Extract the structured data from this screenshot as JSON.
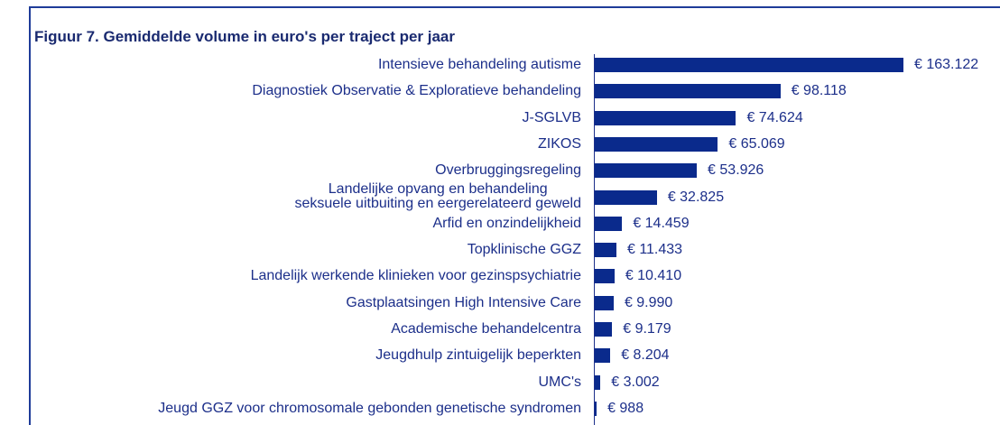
{
  "chart_data": {
    "type": "bar",
    "orientation": "horizontal",
    "title": "Figuur 7. Gemiddelde volume in euro's per traject per jaar",
    "categories": [
      "Intensieve behandeling autisme",
      "Diagnostiek Observatie & Exploratieve behandeling",
      "J-SGLVB",
      "ZIKOS",
      "Overbruggingsregeling",
      "Landelijke opvang en behandeling\nseksuele uitbuiting en eergerelateerd geweld",
      "Arfid en onzindelijkheid",
      "Topklinische GGZ",
      "Landelijk werkende klinieken voor gezinspsychiatrie",
      "Gastplaatsingen High Intensive Care",
      "Academische behandelcentra",
      "Jeugdhulp zintuigelijk beperkten",
      "UMC's",
      "Jeugd GGZ voor chromosomale gebonden genetische syndromen"
    ],
    "values": [
      163122,
      98118,
      74624,
      65069,
      53926,
      32825,
      14459,
      11433,
      10410,
      9990,
      9179,
      8204,
      3002,
      988
    ],
    "value_labels": [
      "€ 163.122",
      "€ 98.118",
      "€ 74.624",
      "€ 65.069",
      "€ 53.926",
      "€ 32.825",
      "€ 14.459",
      "€ 11.433",
      "€ 10.410",
      "€ 9.990",
      "€ 9.179",
      "€ 8.204",
      "€ 3.002",
      "€ 988"
    ],
    "color": "#0a2a8c"
  }
}
